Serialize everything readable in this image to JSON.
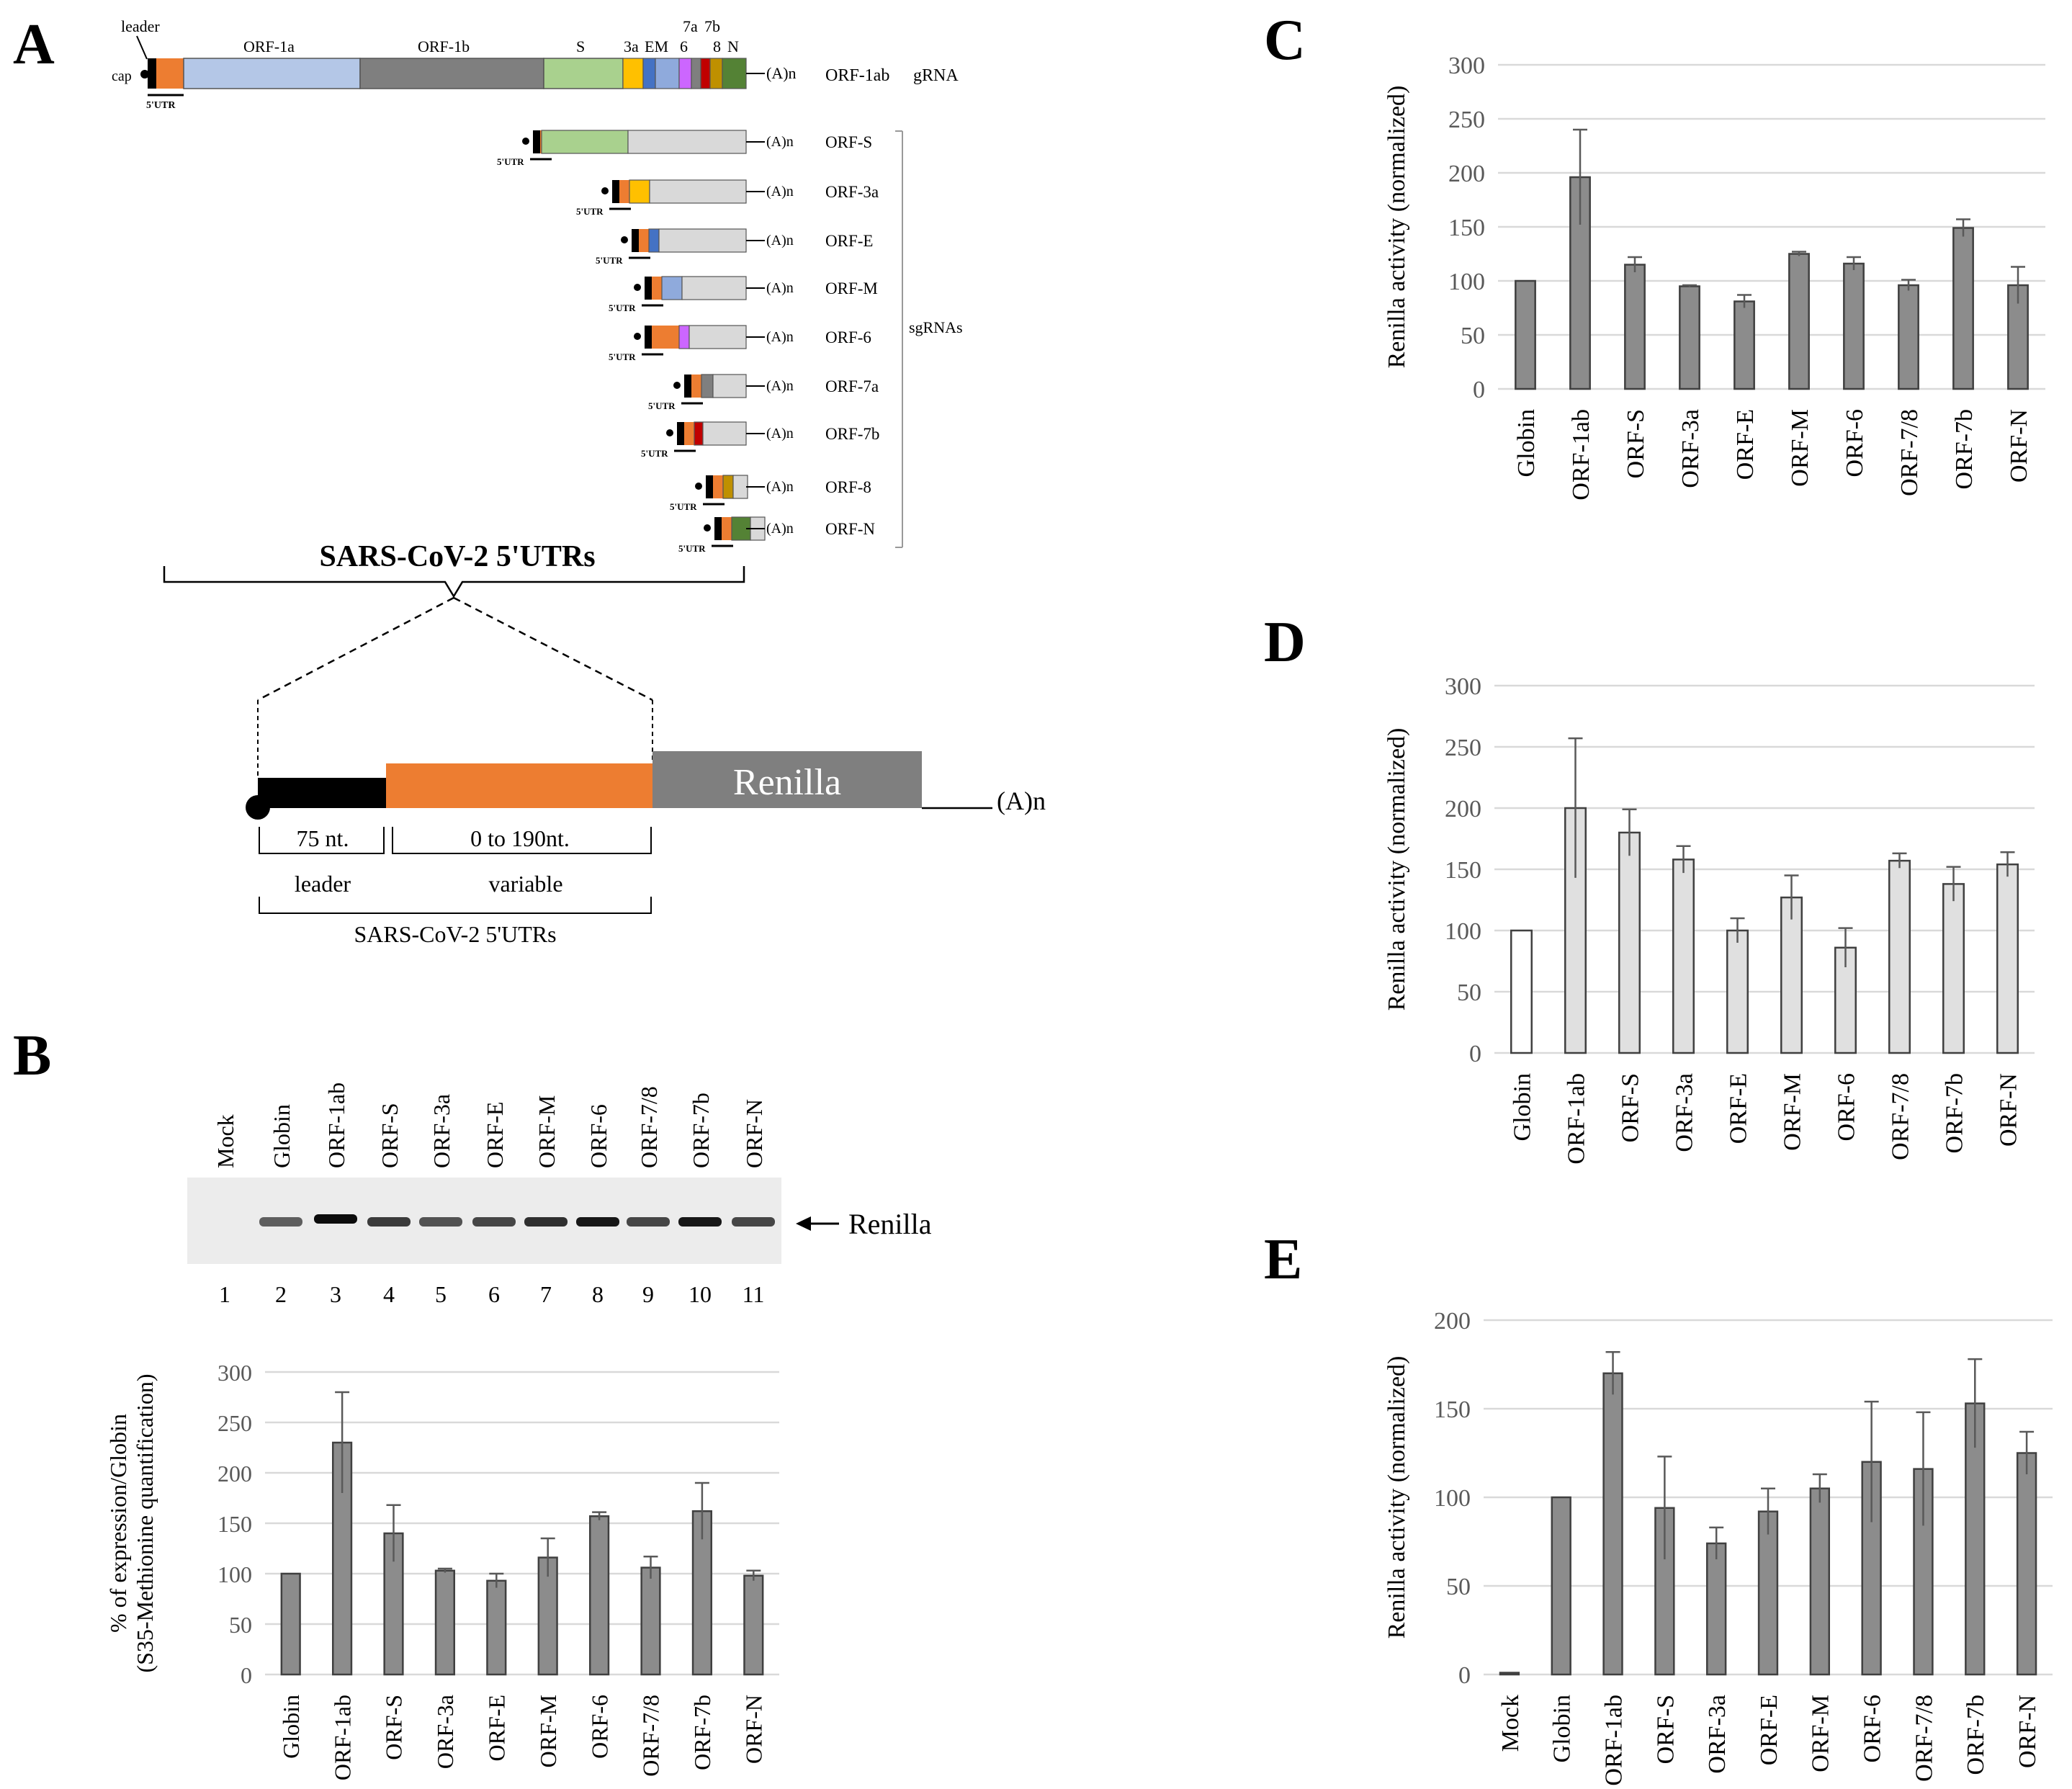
{
  "colors": {
    "orange": "#ED7D31",
    "ltblue": "#B4C7E7",
    "midgray": "#7F7F7F",
    "green": "#A9D18E",
    "yellow": "#FFC000",
    "blue": "#4472C4",
    "mblue": "#8FAADC",
    "purple": "#CC66FF",
    "red": "#C00000",
    "gold": "#BF9000",
    "dkgreen": "#548235",
    "ltgray": "#D9D9D9",
    "black": "#000000",
    "bar_dark": "#8C8C8C",
    "bar_light": "#E0E0E0",
    "bar_white": "#FFFFFF"
  },
  "panels": {
    "a": "A",
    "b": "B",
    "c": "C",
    "d": "D",
    "e": "E"
  },
  "genome": {
    "leader": "leader",
    "cap": "cap",
    "utr": "5'UTR",
    "polya": "(A)n",
    "orf1a": "ORF-1a",
    "orf1b": "ORF-1b",
    "s": "S",
    "a3a": "3a",
    "em": "EM",
    "six": "6",
    "seven_a": "7a",
    "seven_b": "7b",
    "eight": "8",
    "n": "N",
    "grna_name": "ORF-1ab",
    "grna_type": "gRNA",
    "sgrnas": "sgRNAs"
  },
  "sgrna_names": [
    "ORF-S",
    "ORF-3a",
    "ORF-E",
    "ORF-M",
    "ORF-6",
    "ORF-7a",
    "ORF-7b",
    "ORF-8",
    "ORF-N"
  ],
  "construct": {
    "heading": "SARS-CoV-2 5'UTRs",
    "renilla": "Renilla",
    "polya": "(A)n",
    "len_leader": "75 nt.",
    "len_variable": "0 to 190nt.",
    "lbl_leader": "leader",
    "lbl_variable": "variable",
    "footer": "SARS-CoV-2 5'UTRs"
  },
  "gel": {
    "lanes": [
      "Mock",
      "Globin",
      "ORF-1ab",
      "ORF-S",
      "ORF-3a",
      "ORF-E",
      "ORF-M",
      "ORF-6",
      "ORF-7/8",
      "ORF-7b",
      "ORF-N"
    ],
    "numbers": [
      "1",
      "2",
      "3",
      "4",
      "5",
      "6",
      "7",
      "8",
      "9",
      "10",
      "11"
    ],
    "arrow_label": "Renilla",
    "band_intensity": [
      0,
      0.6,
      0.95,
      0.75,
      0.65,
      0.7,
      0.8,
      0.9,
      0.7,
      0.9,
      0.7
    ]
  },
  "chart_data": [
    {
      "panel": "B",
      "type": "bar",
      "categories": [
        "Globin",
        "ORF-1ab",
        "ORF-S",
        "ORF-3a",
        "ORF-E",
        "ORF-M",
        "ORF-6",
        "ORF-7/8",
        "ORF-7b",
        "ORF-N"
      ],
      "values": [
        100,
        230,
        140,
        103,
        93,
        116,
        157,
        106,
        162,
        98
      ],
      "errors": [
        0,
        50,
        28,
        2,
        7,
        19,
        4,
        11,
        28,
        5
      ],
      "ylabel": "% of expression/Globin",
      "ylabel2": "(S35-Methionine quantification)",
      "ylim": [
        0,
        300
      ],
      "yticks": [
        0,
        50,
        100,
        150,
        200,
        250,
        300
      ],
      "grid": true,
      "bar_color": "#8C8C8C"
    },
    {
      "panel": "C",
      "type": "bar",
      "categories": [
        "Globin",
        "ORF-1ab",
        "ORF-S",
        "ORF-3a",
        "ORF-E",
        "ORF-M",
        "ORF-6",
        "ORF-7/8",
        "ORF-7b",
        "ORF-N"
      ],
      "values": [
        100,
        196,
        115,
        95,
        81,
        125,
        116,
        96,
        149,
        96
      ],
      "errors": [
        0,
        44,
        7,
        1,
        6,
        2,
        6,
        5,
        8,
        17
      ],
      "ylabel": "Renilla activity (normalized)",
      "ylim": [
        0,
        300
      ],
      "yticks": [
        0,
        50,
        100,
        150,
        200,
        250,
        300
      ],
      "grid": true,
      "bar_color": "#8C8C8C"
    },
    {
      "panel": "D",
      "type": "bar",
      "categories": [
        "Globin",
        "ORF-1ab",
        "ORF-S",
        "ORF-3a",
        "ORF-E",
        "ORF-M",
        "ORF-6",
        "ORF-7/8",
        "ORF-7b",
        "ORF-N"
      ],
      "values": [
        100,
        200,
        180,
        158,
        100,
        127,
        86,
        157,
        138,
        154
      ],
      "errors": [
        0,
        57,
        19,
        11,
        10,
        18,
        16,
        6,
        14,
        10
      ],
      "ylabel": "Renilla activity (normalized)",
      "ylim": [
        0,
        300
      ],
      "yticks": [
        0,
        50,
        100,
        150,
        200,
        250,
        300
      ],
      "grid": true,
      "bar_color": "#E0E0E0",
      "first_bar_color": "#FFFFFF"
    },
    {
      "panel": "E",
      "type": "bar",
      "categories": [
        "Mock",
        "Globin",
        "ORF-1ab",
        "ORF-S",
        "ORF-3a",
        "ORF-E",
        "ORF-M",
        "ORF-6",
        "ORF-7/8",
        "ORF-7b",
        "ORF-N"
      ],
      "values": [
        1,
        100,
        170,
        94,
        74,
        92,
        105,
        120,
        116,
        153,
        125
      ],
      "errors": [
        0,
        0,
        12,
        29,
        9,
        13,
        8,
        34,
        32,
        25,
        12
      ],
      "ylabel": "Renilla activity (normalized)",
      "ylim": [
        0,
        200
      ],
      "yticks": [
        0,
        50,
        100,
        150,
        200
      ],
      "grid": true,
      "bar_color": "#8C8C8C"
    }
  ]
}
